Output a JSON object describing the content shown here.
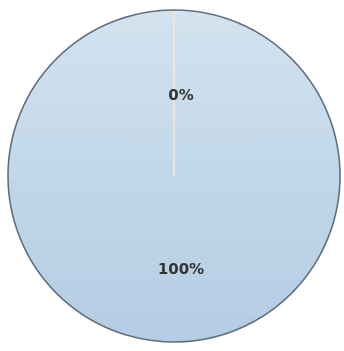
{
  "chart_data": {
    "type": "pie",
    "slices": [
      {
        "label": "0%",
        "value": 0
      },
      {
        "label": "100%",
        "value": 100
      }
    ],
    "colors": {
      "fill_top": "#d3e3ef",
      "fill_mid": "#c2d8e9",
      "fill_bottom": "#b4cde4",
      "outline": "#5f6f80",
      "zero_slice_line": "#f0e4d8"
    }
  }
}
